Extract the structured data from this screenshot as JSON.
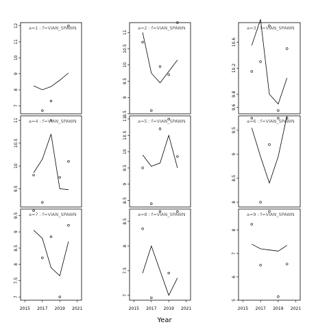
{
  "chart_data": {
    "type": "scatter",
    "xlabel": "Year",
    "x_ticks": [
      2015,
      2017,
      2019,
      2021
    ],
    "panels": [
      {
        "label": "a=1 : f=VIAN_SPAWN",
        "ylim": [
          6.5,
          12.2
        ],
        "yticks": [
          7,
          8,
          9,
          10,
          11,
          12
        ],
        "points": [
          {
            "x": 2017,
            "y": 6.7
          },
          {
            "x": 2018,
            "y": 7.3
          },
          {
            "x": 2020,
            "y": 12.0
          }
        ],
        "line": [
          {
            "x": 2016,
            "y": 8.25
          },
          {
            "x": 2017,
            "y": 8.0
          },
          {
            "x": 2018,
            "y": 8.2
          },
          {
            "x": 2019,
            "y": 8.6
          },
          {
            "x": 2020,
            "y": 9.05
          }
        ]
      },
      {
        "label": "a=4 : f=VIAN_SPAWN",
        "ylim": [
          9.1,
          11.1
        ],
        "yticks": [
          9.5,
          10.0,
          10.5,
          11.0
        ],
        "points": [
          {
            "x": 2016,
            "y": 9.8
          },
          {
            "x": 2017,
            "y": 9.2
          },
          {
            "x": 2018,
            "y": 11.0
          },
          {
            "x": 2019,
            "y": 9.75
          },
          {
            "x": 2020,
            "y": 10.1
          }
        ],
        "line": [
          {
            "x": 2016,
            "y": 9.85
          },
          {
            "x": 2017,
            "y": 10.15
          },
          {
            "x": 2018,
            "y": 10.7
          },
          {
            "x": 2019,
            "y": 9.5
          },
          {
            "x": 2020,
            "y": 9.48
          }
        ]
      },
      {
        "label": "a=7 : f=VIAN_SPAWN",
        "ylim": [
          6.9,
          9.7
        ],
        "yticks": [
          7.0,
          7.5,
          8.0,
          8.5,
          9.0,
          9.5
        ],
        "points": [
          {
            "x": 2016,
            "y": 9.65
          },
          {
            "x": 2017,
            "y": 8.2
          },
          {
            "x": 2018,
            "y": 8.85
          },
          {
            "x": 2019,
            "y": 7.0
          },
          {
            "x": 2020,
            "y": 9.2
          }
        ],
        "line": [
          {
            "x": 2016,
            "y": 9.05
          },
          {
            "x": 2017,
            "y": 8.8
          },
          {
            "x": 2018,
            "y": 7.9
          },
          {
            "x": 2019,
            "y": 7.65
          },
          {
            "x": 2020,
            "y": 8.7
          }
        ]
      },
      {
        "label": "a=2 : f=VIAN_SPAWN",
        "ylim": [
          8.5,
          11.3
        ],
        "yticks": [
          8.5,
          9.0,
          9.5,
          10.0,
          10.5,
          11.0
        ],
        "points": [
          {
            "x": 2016,
            "y": 10.7
          },
          {
            "x": 2017,
            "y": 8.6
          },
          {
            "x": 2018,
            "y": 9.95
          },
          {
            "x": 2019,
            "y": 9.7
          },
          {
            "x": 2020,
            "y": 11.3
          }
        ],
        "line": [
          {
            "x": 2016,
            "y": 11.0
          },
          {
            "x": 2017,
            "y": 9.75
          },
          {
            "x": 2018,
            "y": 9.45
          },
          {
            "x": 2019,
            "y": 9.8
          },
          {
            "x": 2020,
            "y": 10.15
          }
        ]
      },
      {
        "label": "a=5 : f=VIAN_SPAWN",
        "ylim": [
          8.3,
          11.1
        ],
        "yticks": [
          8.5,
          9.0,
          9.5,
          10.0,
          10.5,
          11.0
        ],
        "points": [
          {
            "x": 2016,
            "y": 9.5
          },
          {
            "x": 2017,
            "y": 8.4
          },
          {
            "x": 2018,
            "y": 10.7
          },
          {
            "x": 2019,
            "y": 11.0
          },
          {
            "x": 2020,
            "y": 9.85
          }
        ],
        "line": [
          {
            "x": 2016,
            "y": 9.9
          },
          {
            "x": 2017,
            "y": 9.55
          },
          {
            "x": 2018,
            "y": 9.65
          },
          {
            "x": 2019,
            "y": 10.5
          },
          {
            "x": 2020,
            "y": 9.5
          }
        ]
      },
      {
        "label": "a=8 : f=VIAN_SPAWN",
        "ylim": [
          6.9,
          8.75
        ],
        "yticks": [
          7.0,
          7.5,
          8.0,
          8.5
        ],
        "points": [
          {
            "x": 2016,
            "y": 8.35
          },
          {
            "x": 2017,
            "y": 6.95
          },
          {
            "x": 2018,
            "y": 8.7
          },
          {
            "x": 2019,
            "y": 7.45
          },
          {
            "x": 2020,
            "y": 8.7
          }
        ],
        "line": [
          {
            "x": 2016,
            "y": 7.45
          },
          {
            "x": 2017,
            "y": 8.0
          },
          {
            "x": 2018,
            "y": 7.5
          },
          {
            "x": 2019,
            "y": 7.0
          },
          {
            "x": 2020,
            "y": 7.35
          }
        ]
      },
      {
        "label": "a=3 : f=VIAN_SPAWN",
        "ylim": [
          9.5,
          10.9
        ],
        "yticks": [
          9.6,
          9.8,
          10.2,
          10.6
        ],
        "points": [
          {
            "x": 2016,
            "y": 10.15
          },
          {
            "x": 2017,
            "y": 10.3
          },
          {
            "x": 2018,
            "y": 10.85
          },
          {
            "x": 2019,
            "y": 9.55
          },
          {
            "x": 2020,
            "y": 10.5
          }
        ],
        "line": [
          {
            "x": 2016,
            "y": 10.55
          },
          {
            "x": 2017,
            "y": 10.95
          },
          {
            "x": 2018,
            "y": 9.8
          },
          {
            "x": 2019,
            "y": 9.65
          },
          {
            "x": 2020,
            "y": 10.05
          }
        ]
      },
      {
        "label": "a=6 : f=VIAN_SPAWN",
        "ylim": [
          7.9,
          9.8
        ],
        "yticks": [
          8.0,
          8.5,
          9.0,
          9.5
        ],
        "points": [
          {
            "x": 2016,
            "y": 9.75
          },
          {
            "x": 2017,
            "y": 8.0
          },
          {
            "x": 2018,
            "y": 9.2
          },
          {
            "x": 2019,
            "y": 9.75
          },
          {
            "x": 2020,
            "y": 9.75
          }
        ],
        "line": [
          {
            "x": 2016,
            "y": 9.55
          },
          {
            "x": 2017,
            "y": 8.95
          },
          {
            "x": 2018,
            "y": 8.4
          },
          {
            "x": 2019,
            "y": 8.95
          },
          {
            "x": 2020,
            "y": 9.8
          }
        ]
      },
      {
        "label": "a=9 : f=VIAN_SPAWN",
        "ylim": [
          5,
          8.9
        ],
        "yticks": [
          5,
          6,
          7,
          8
        ],
        "points": [
          {
            "x": 2016,
            "y": 8.25
          },
          {
            "x": 2017,
            "y": 6.5
          },
          {
            "x": 2018,
            "y": 8.8
          },
          {
            "x": 2019,
            "y": 5.15
          },
          {
            "x": 2020,
            "y": 6.55
          }
        ],
        "line": [
          {
            "x": 2016,
            "y": 7.4
          },
          {
            "x": 2017,
            "y": 7.2
          },
          {
            "x": 2018,
            "y": 7.15
          },
          {
            "x": 2019,
            "y": 7.1
          },
          {
            "x": 2020,
            "y": 7.35
          }
        ]
      }
    ]
  }
}
